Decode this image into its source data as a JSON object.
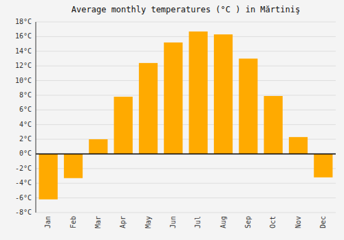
{
  "chart_data": {
    "type": "bar",
    "title": "Average monthly temperatures (°C ) in Mărtiniş",
    "categories": [
      "Jan",
      "Feb",
      "Mar",
      "Apr",
      "May",
      "Jun",
      "Jul",
      "Aug",
      "Sep",
      "Oct",
      "Nov",
      "Dec"
    ],
    "values": [
      -6.2,
      -3.3,
      2.0,
      7.8,
      12.4,
      15.2,
      16.7,
      16.3,
      13.0,
      7.9,
      2.3,
      -3.2
    ],
    "color": "#FFAA00",
    "ylim": [
      -8,
      18
    ],
    "yticks": [
      {
        "value": -8,
        "label": "-8°C"
      },
      {
        "value": -6,
        "label": "-6°C"
      },
      {
        "value": -4,
        "label": "-4°C"
      },
      {
        "value": -2,
        "label": "-2°C"
      },
      {
        "value": 0,
        "label": "0°C"
      },
      {
        "value": 2,
        "label": "2°C"
      },
      {
        "value": 4,
        "label": "4°C"
      },
      {
        "value": 6,
        "label": "6°C"
      },
      {
        "value": 8,
        "label": "8°C"
      },
      {
        "value": 10,
        "label": "10°C"
      },
      {
        "value": 12,
        "label": "12°C"
      },
      {
        "value": 14,
        "label": "14°C"
      },
      {
        "value": 16,
        "label": "16°C"
      },
      {
        "value": 18,
        "label": "18°C"
      }
    ],
    "grid": true
  }
}
